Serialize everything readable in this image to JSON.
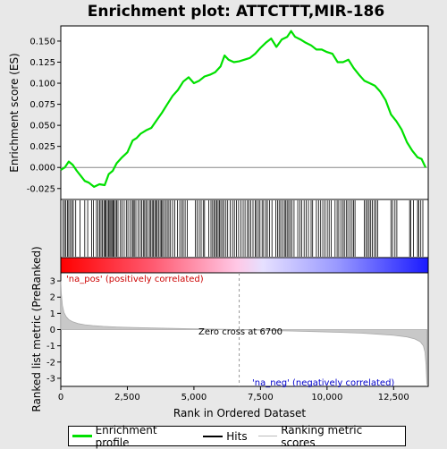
{
  "chart_data": {
    "type": "line",
    "title": "Enrichment plot: ATTCTTT,MIR-186",
    "x_axis": {
      "label": "Rank in Ordered Dataset",
      "lim": [
        0,
        13800
      ],
      "ticks": [
        0,
        2500,
        5000,
        7500,
        10000,
        12500
      ],
      "tick_labels": [
        "0",
        "2,500",
        "5,000",
        "7,500",
        "10,000",
        "12,500"
      ]
    },
    "es_panel": {
      "ylabel": "Enrichment score (ES)",
      "ylim": [
        -0.038,
        0.168
      ],
      "ticks": [
        -0.025,
        0.0,
        0.025,
        0.05,
        0.075,
        0.1,
        0.125,
        0.15
      ],
      "tick_labels": [
        "-0.025",
        "0.000",
        "0.025",
        "0.050",
        "0.075",
        "0.100",
        "0.125",
        "0.150"
      ],
      "series": [
        {
          "name": "Enrichment profile",
          "color": "#00e000",
          "x": [
            0,
            150,
            300,
            450,
            600,
            750,
            900,
            1050,
            1250,
            1450,
            1650,
            1800,
            1950,
            2100,
            2300,
            2500,
            2700,
            2850,
            3000,
            3200,
            3400,
            3600,
            3800,
            4000,
            4200,
            4400,
            4600,
            4800,
            5000,
            5200,
            5400,
            5600,
            5800,
            6000,
            6150,
            6300,
            6500,
            6700,
            6900,
            7100,
            7300,
            7500,
            7700,
            7900,
            8100,
            8300,
            8500,
            8650,
            8800,
            9000,
            9200,
            9400,
            9600,
            9800,
            10000,
            10200,
            10400,
            10600,
            10800,
            11000,
            11200,
            11400,
            11600,
            11800,
            12000,
            12200,
            12400,
            12600,
            12800,
            13000,
            13200,
            13400,
            13550,
            13700
          ],
          "values": [
            -0.003,
            0.0,
            0.007,
            0.003,
            -0.004,
            -0.01,
            -0.016,
            -0.018,
            -0.023,
            -0.02,
            -0.021,
            -0.008,
            -0.004,
            0.005,
            0.012,
            0.018,
            0.032,
            0.035,
            0.04,
            0.044,
            0.047,
            0.056,
            0.065,
            0.075,
            0.085,
            0.092,
            0.102,
            0.107,
            0.1,
            0.103,
            0.108,
            0.11,
            0.113,
            0.12,
            0.133,
            0.128,
            0.125,
            0.126,
            0.128,
            0.13,
            0.135,
            0.142,
            0.148,
            0.153,
            0.143,
            0.152,
            0.155,
            0.162,
            0.155,
            0.152,
            0.148,
            0.145,
            0.14,
            0.14,
            0.137,
            0.135,
            0.125,
            0.125,
            0.128,
            0.118,
            0.11,
            0.103,
            0.1,
            0.097,
            0.09,
            0.08,
            0.063,
            0.055,
            0.045,
            0.03,
            0.02,
            0.012,
            0.01,
            0.0
          ]
        }
      ],
      "baseline": 0.0
    },
    "hits": [
      80,
      140,
      190,
      250,
      300,
      360,
      420,
      470,
      560,
      720,
      900,
      1010,
      1160,
      1230,
      1340,
      1400,
      1460,
      1510,
      1560,
      1620,
      1660,
      1700,
      1750,
      1800,
      1840,
      1880,
      1920,
      1960,
      2000,
      2050,
      2100,
      2150,
      2240,
      2300,
      2380,
      2460,
      2520,
      2600,
      2680,
      2720,
      2760,
      2820,
      2900,
      2980,
      3040,
      3100,
      3150,
      3200,
      3260,
      3330,
      3380,
      3430,
      3480,
      3530,
      3580,
      3620,
      3670,
      3730,
      3780,
      3820,
      3870,
      3940,
      4000,
      4060,
      4120,
      4200,
      4280,
      4380,
      4470,
      4540,
      4600,
      4670,
      4750,
      5050,
      5120,
      5200,
      5270,
      5350,
      5400,
      5560,
      5640,
      5700,
      5760,
      5810,
      5860,
      5910,
      5960,
      6010,
      6070,
      6130,
      6200,
      6270,
      6360,
      6450,
      6520,
      6600,
      6680,
      6770,
      6850,
      6920,
      7010,
      7060,
      7140,
      7220,
      7300,
      7350,
      7420,
      7480,
      7560,
      7620,
      7700,
      7760,
      7840,
      7930,
      8080,
      8140,
      8200,
      8260,
      8330,
      8400,
      8450,
      8500,
      8560,
      8620,
      8680,
      8760,
      8900,
      8980,
      9050,
      9140,
      9220,
      9300,
      9400,
      9460,
      9600,
      9680,
      9760,
      9840,
      9920,
      10010,
      10080,
      10160,
      10300,
      10380,
      10440,
      10520,
      10600,
      10650,
      10720,
      10780,
      10860,
      10940,
      11000,
      11050,
      11400,
      11460,
      11520,
      11580,
      11640,
      11700,
      11780,
      11840,
      11900,
      12400,
      12460,
      12550,
      12620,
      13100,
      13150,
      13250,
      13400,
      13440,
      13520,
      13600
    ],
    "metric_panel": {
      "ylabel": "Ranked list metric (PreRanked)",
      "ylim": [
        -3.5,
        3.5
      ],
      "ticks": [
        -3,
        -2,
        -1,
        0,
        1,
        2,
        3
      ],
      "tick_labels": [
        "-3",
        "-2",
        "-1",
        "0",
        "1",
        "2",
        "3"
      ],
      "series_name": "Ranking metric scores",
      "curve": {
        "x": [
          0,
          20,
          60,
          120,
          200,
          300,
          450,
          650,
          900,
          1200,
          1600,
          2100,
          2700,
          3400,
          4200,
          5000,
          5800,
          6700,
          7500,
          8500,
          9500,
          10500,
          11300,
          12000,
          12500,
          13000,
          13300,
          13500,
          13620,
          13680,
          13720,
          13750
        ],
        "values": [
          3.0,
          2.2,
          1.5,
          1.05,
          0.8,
          0.62,
          0.48,
          0.37,
          0.3,
          0.25,
          0.2,
          0.16,
          0.13,
          0.1,
          0.07,
          0.05,
          0.03,
          0.0,
          -0.04,
          -0.08,
          -0.12,
          -0.17,
          -0.22,
          -0.29,
          -0.35,
          -0.45,
          -0.58,
          -0.75,
          -1.0,
          -1.4,
          -2.2,
          -3.4
        ]
      },
      "zero_cross": 6700,
      "zero_cross_label": "Zero cross at 6700",
      "pos_label": "'na_pos' (positively correlated)",
      "neg_label": "'na_neg' (negatively correlated)"
    },
    "legend": [
      "Enrichment profile",
      "Hits",
      "Ranking metric scores"
    ]
  }
}
